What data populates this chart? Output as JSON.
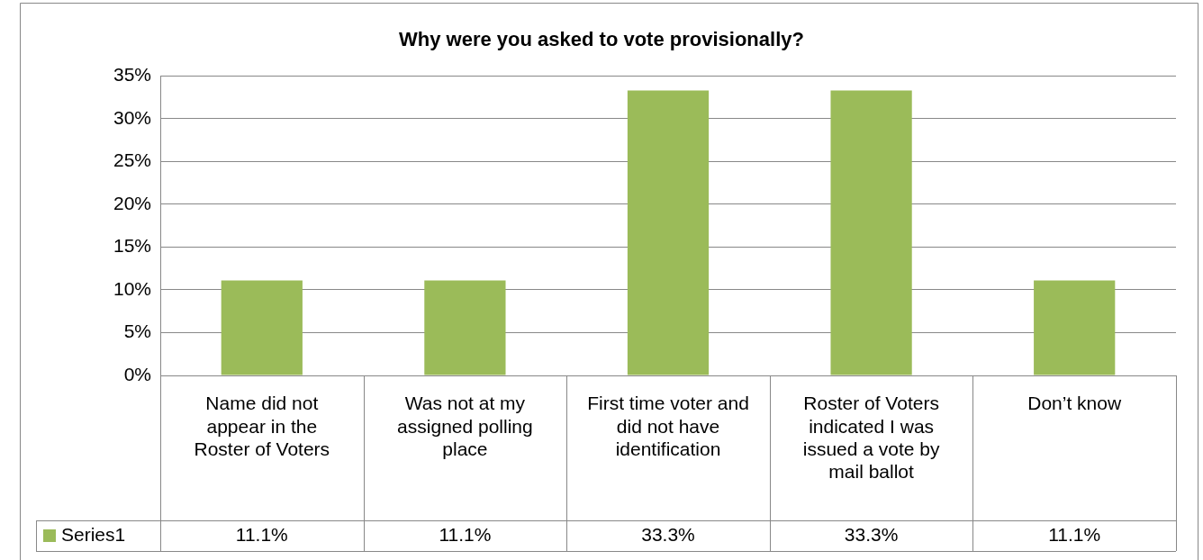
{
  "chart_data": {
    "type": "bar",
    "title": "Why were you asked to vote provisionally?",
    "categories": [
      "Name did not appear in the Roster of Voters",
      "Was not at my assigned polling place",
      "First time voter and did not have identification",
      "Roster of Voters indicated I was issued a vote by mail ballot",
      "Don’t know"
    ],
    "series": [
      {
        "name": "Series1",
        "color": "#9bbb59",
        "values": [
          11.1,
          11.1,
          33.3,
          33.3,
          11.1
        ],
        "value_labels": [
          "11.1%",
          "11.1%",
          "33.3%",
          "33.3%",
          "11.1%"
        ]
      }
    ],
    "ylim": [
      0,
      35
    ],
    "yticks": [
      {
        "value": 0,
        "label": "0%"
      },
      {
        "value": 5,
        "label": "5%"
      },
      {
        "value": 10,
        "label": "10%"
      },
      {
        "value": 15,
        "label": "15%"
      },
      {
        "value": 20,
        "label": "20%"
      },
      {
        "value": 25,
        "label": "25%"
      },
      {
        "value": 30,
        "label": "30%"
      },
      {
        "value": 35,
        "label": "35%"
      }
    ],
    "grid": "y",
    "legend": "bottom left"
  }
}
